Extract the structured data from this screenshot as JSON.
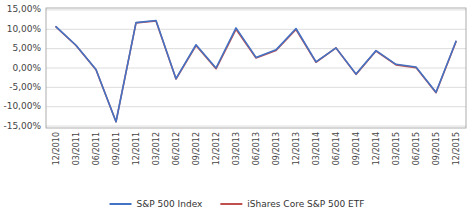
{
  "chart_data": {
    "type": "line",
    "categories": [
      "12/2010",
      "03/2011",
      "06/2011",
      "09/2011",
      "12/2011",
      "03/2012",
      "06/2012",
      "09/2012",
      "12/2012",
      "03/2013",
      "06/2013",
      "09/2013",
      "12/2013",
      "03/2014",
      "06/2014",
      "09/2014",
      "12/2014",
      "03/2015",
      "06/2015",
      "09/2015",
      "12/2015"
    ],
    "series": [
      {
        "name": "S&P 500 Index",
        "color": "#4472C4",
        "values": [
          0.1068,
          0.0588,
          -0.0039,
          -0.1388,
          0.1171,
          0.1229,
          -0.0275,
          0.06,
          0.0,
          0.1036,
          0.0274,
          0.0469,
          0.1021,
          0.016,
          0.052,
          -0.0156,
          0.0449,
          0.0095,
          0.0028,
          -0.0628,
          0.0693
        ]
      },
      {
        "name": "iShares Core S&P 500 ETF",
        "color": "#C0504D",
        "values": [
          0.106,
          0.0582,
          -0.0045,
          -0.139,
          0.1165,
          0.1215,
          -0.0285,
          0.058,
          -0.002,
          0.1,
          0.026,
          0.0455,
          0.0995,
          0.0148,
          0.0518,
          -0.0165,
          0.044,
          0.008,
          0.001,
          -0.064,
          0.068
        ]
      }
    ],
    "ylim": [
      -0.155,
      0.155
    ],
    "yticks": [
      {
        "value": -0.15,
        "label": "-15,00%"
      },
      {
        "value": -0.1,
        "label": "-10,00%"
      },
      {
        "value": -0.05,
        "label": "-5,00%"
      },
      {
        "value": 0.0,
        "label": "0,00%"
      },
      {
        "value": 0.05,
        "label": "5,00%"
      },
      {
        "value": 0.1,
        "label": "10,00%"
      },
      {
        "value": 0.15,
        "label": "15,00%"
      }
    ],
    "grid": true,
    "legend": "bottom"
  }
}
